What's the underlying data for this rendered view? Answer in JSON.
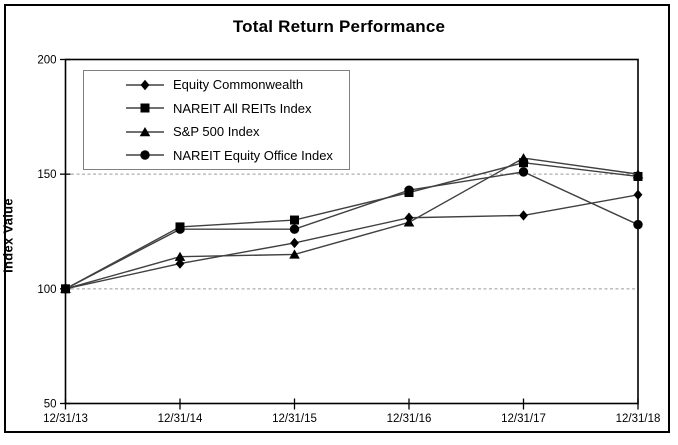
{
  "chart_data": {
    "type": "line",
    "title": "Total Return Performance",
    "ylabel": "Index Value",
    "xlabel": "",
    "x_labels": [
      "12/31/13",
      "12/31/14",
      "12/31/15",
      "12/31/16",
      "12/31/17",
      "12/31/18"
    ],
    "ylim": [
      50,
      200
    ],
    "yticks": [
      50,
      100,
      150,
      200
    ],
    "gridlines_y": [
      100,
      150
    ],
    "grid": "horizontal dashed gridlines at 100 and 150",
    "legend_position": "top-left inside plot area",
    "series": [
      {
        "name": "Equity Commonwealth",
        "marker": "diamond",
        "values": [
          100,
          111,
          120,
          131,
          132,
          141
        ]
      },
      {
        "name": "NAREIT All REITs Index",
        "marker": "square",
        "values": [
          100,
          127,
          130,
          142,
          155,
          149
        ]
      },
      {
        "name": "S&P 500 Index",
        "marker": "triangle",
        "values": [
          100,
          114,
          115,
          129,
          157,
          150
        ]
      },
      {
        "name": "NAREIT Equity Office Index",
        "marker": "circle",
        "values": [
          100,
          126,
          126,
          143,
          151,
          128
        ]
      }
    ],
    "styles": {
      "line_color": "#404040",
      "marker_color": "#000000",
      "axis_color": "#000000",
      "gridline_color": "#9a9a9a",
      "legend_border_color": "#808080",
      "background": "#ffffff",
      "outer_border_color": "#000000"
    }
  }
}
